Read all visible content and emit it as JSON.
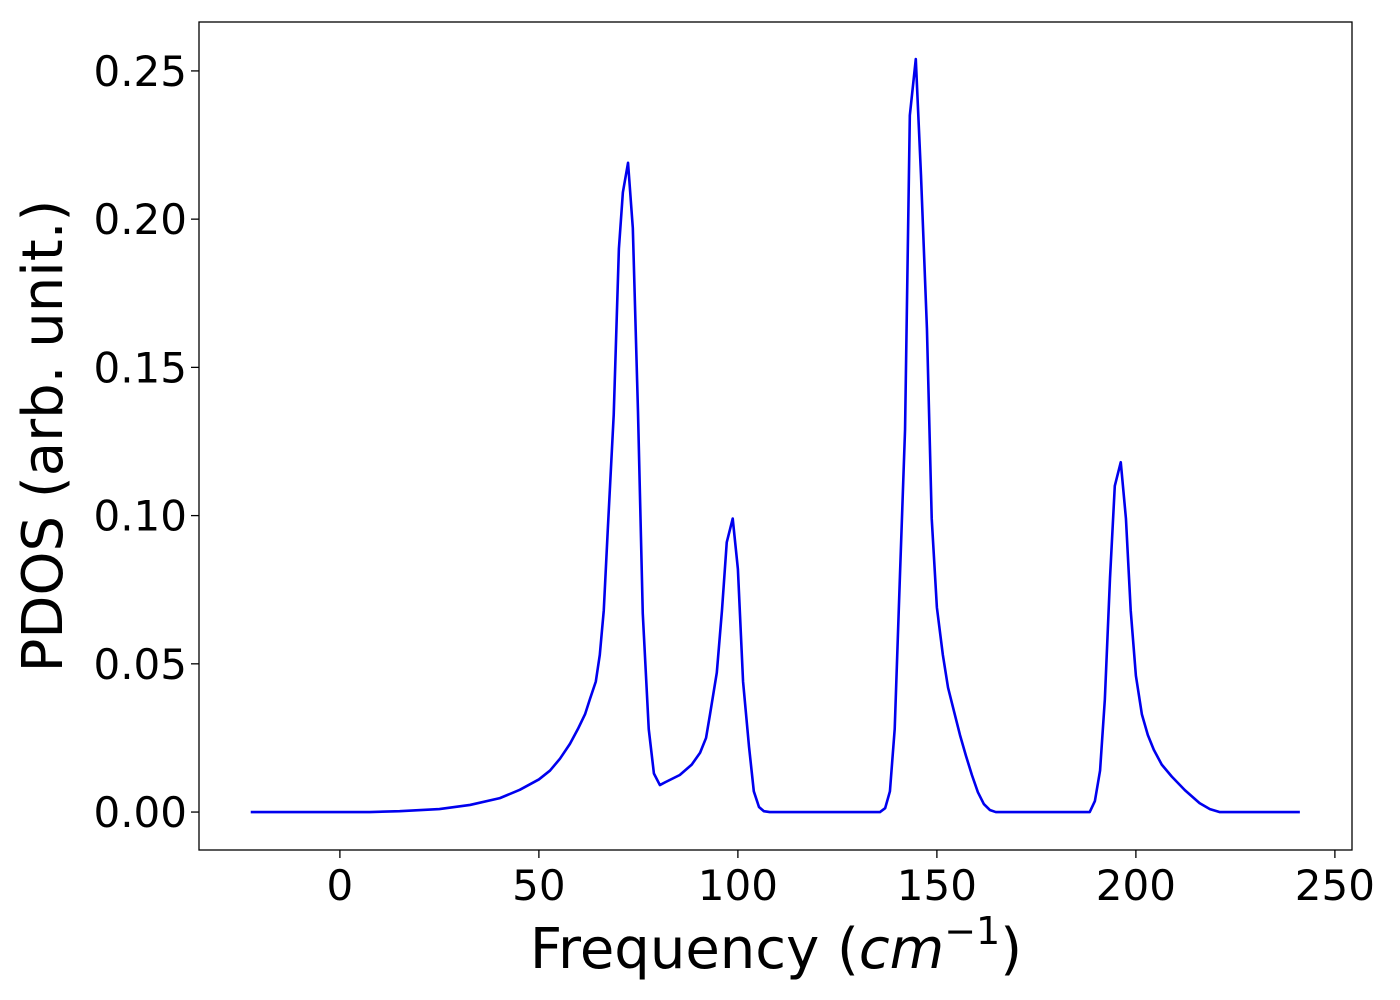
{
  "chart_data": {
    "type": "line",
    "xlabel_parts": [
      "Frequency (",
      "cm",
      "−1",
      ")"
    ],
    "ylabel": "PDOS (arb. unit.)",
    "xlim": [
      -35.4,
      254.3
    ],
    "ylim": [
      -0.0128,
      0.2665
    ],
    "xticks": [
      0,
      50,
      100,
      150,
      200,
      250
    ],
    "yticks": [
      {
        "value": 0,
        "label": "0.00"
      },
      {
        "value": 0.05,
        "label": "0.05"
      },
      {
        "value": 0.1,
        "label": "0.10"
      },
      {
        "value": 0.15,
        "label": "0.15"
      },
      {
        "value": 0.2,
        "label": "0.20"
      },
      {
        "value": 0.25,
        "label": "0.25"
      }
    ],
    "grid": false,
    "series": [
      {
        "color": "#0000ee",
        "x": [
          -22.4,
          0,
          7.5,
          15,
          25,
          32.7,
          40.2,
          45.2,
          50,
          52.8,
          55.3,
          57.8,
          59.8,
          61.6,
          62.8,
          64.3,
          65.3,
          66.3,
          67.3,
          68.8,
          70.1,
          71.1,
          72.4,
          73.6,
          74.9,
          76.1,
          77.6,
          78.9,
          80.4,
          81.8,
          85.4,
          88.4,
          90.5,
          92,
          93,
          94.7,
          96,
          97.2,
          98.7,
          100,
          101.3,
          102.8,
          104,
          105.3,
          106.5,
          108,
          135.7,
          137,
          138.2,
          139.4,
          140.7,
          142,
          143.2,
          144.7,
          146,
          147.5,
          148.7,
          150,
          151.5,
          152.8,
          154.3,
          155.8,
          157.3,
          158.8,
          160.3,
          161.8,
          163.3,
          164.8,
          188.4,
          189.7,
          191,
          192.2,
          193.5,
          194.7,
          196.2,
          197.5,
          198.7,
          200,
          201.5,
          203,
          204.5,
          206.5,
          209,
          212.3,
          216,
          218.6,
          221,
          241.2
        ],
        "values": [
          0,
          0,
          0,
          0.0003,
          0.001,
          0.0024,
          0.0047,
          0.0075,
          0.011,
          0.014,
          0.018,
          0.023,
          0.028,
          0.033,
          0.038,
          0.044,
          0.053,
          0.068,
          0.095,
          0.134,
          0.19,
          0.209,
          0.219,
          0.197,
          0.135,
          0.067,
          0.028,
          0.013,
          0.0091,
          0.0101,
          0.0125,
          0.016,
          0.02,
          0.025,
          0.033,
          0.047,
          0.068,
          0.091,
          0.099,
          0.082,
          0.044,
          0.022,
          0.007,
          0.0017,
          0.0003,
          0,
          0,
          0.0013,
          0.007,
          0.028,
          0.079,
          0.129,
          0.235,
          0.254,
          0.215,
          0.163,
          0.099,
          0.069,
          0.053,
          0.042,
          0.034,
          0.026,
          0.019,
          0.0125,
          0.0067,
          0.0027,
          0.0007,
          0,
          0,
          0.0037,
          0.014,
          0.038,
          0.079,
          0.11,
          0.118,
          0.099,
          0.068,
          0.046,
          0.033,
          0.026,
          0.021,
          0.016,
          0.012,
          0.0074,
          0.003,
          0.001,
          0,
          0
        ]
      }
    ]
  }
}
